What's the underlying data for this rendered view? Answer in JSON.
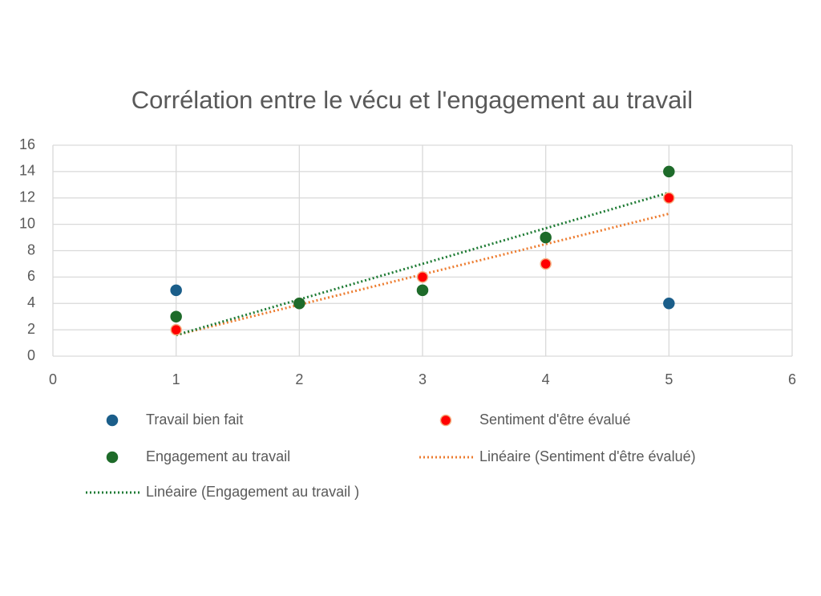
{
  "chart_data": {
    "type": "scatter",
    "title": "Corrélation entre le vécu et l'engagement au travail",
    "series": [
      {
        "name": "Travail bien fait",
        "color": "#1b5e8a",
        "x": [
          1,
          5
        ],
        "values": [
          5,
          4
        ]
      },
      {
        "name": "Sentiment d'être évalué",
        "color": "#ff0000",
        "x": [
          1,
          2,
          3,
          4,
          5
        ],
        "values": [
          2,
          4,
          6,
          7,
          12
        ]
      },
      {
        "name": "Engagement au travail",
        "color": "#1e6b2a",
        "x": [
          1,
          2,
          3,
          4,
          5
        ],
        "values": [
          3,
          4,
          5,
          9,
          14
        ]
      }
    ],
    "trendlines": [
      {
        "name": "Linéaire (Sentiment d'être évalué)",
        "color": "#ed7d31",
        "series": 1
      },
      {
        "name": "Linéaire (Engagement au travail )",
        "color": "#1e7b34",
        "series": 2
      }
    ],
    "xlim": [
      0,
      6
    ],
    "xticks": [
      0,
      1,
      2,
      3,
      4,
      5,
      6
    ],
    "ylim": [
      0,
      16
    ],
    "yticks": [
      0,
      2,
      4,
      6,
      8,
      10,
      12,
      14,
      16
    ],
    "grid": true,
    "legend": "bottom"
  }
}
